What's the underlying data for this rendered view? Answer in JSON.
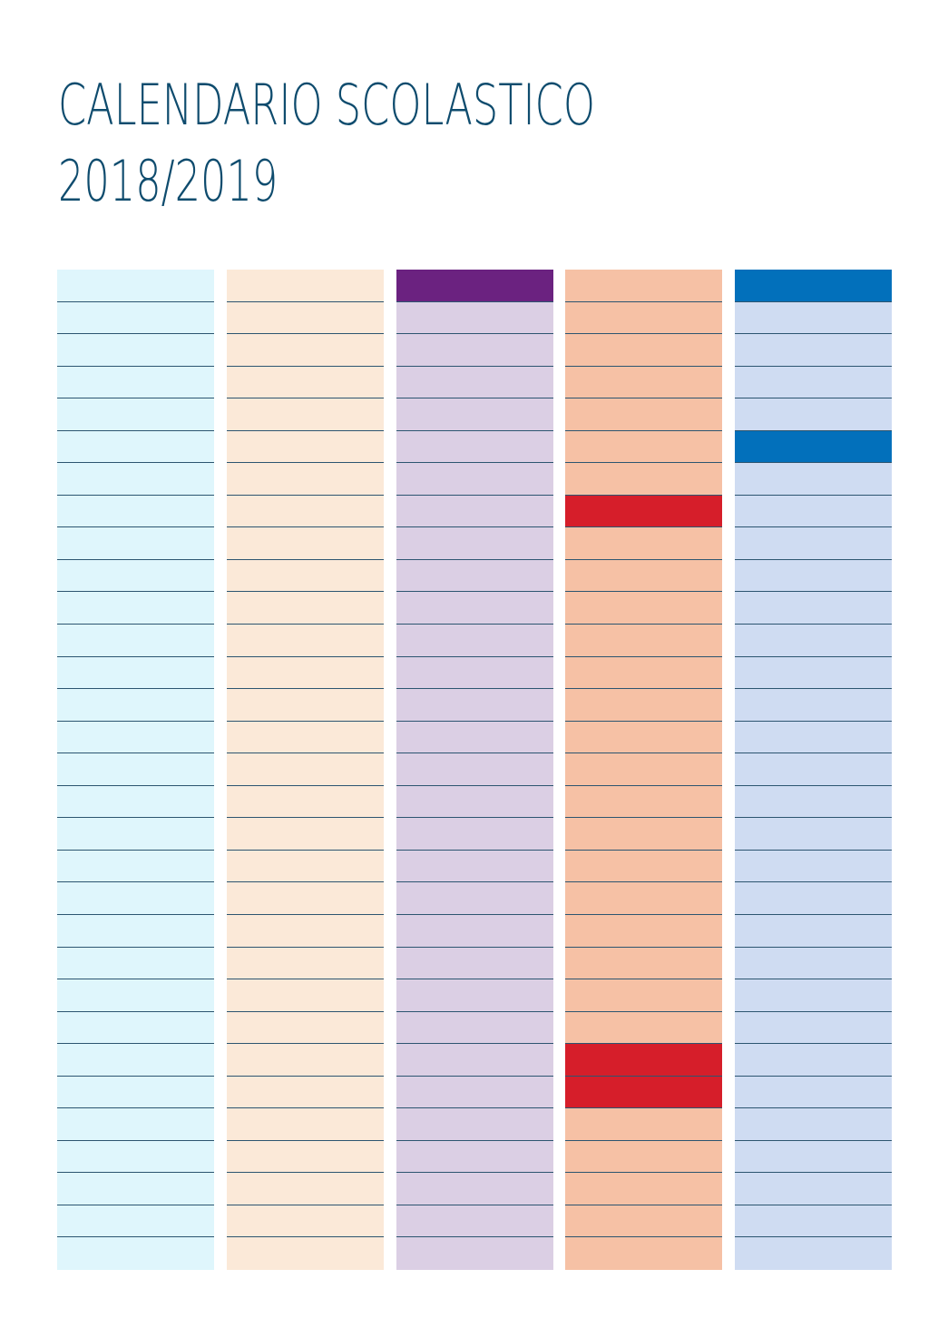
{
  "title": {
    "line1": "CALENDARIO SCOLASTICO",
    "line2": "2018/2019"
  },
  "calendar": {
    "rows_per_column": 31,
    "columns": [
      {
        "id": "col-1",
        "base_color": "#dff6fc",
        "highlighted_rows": [],
        "highlight_color": null
      },
      {
        "id": "col-2",
        "base_color": "#fbe9d8",
        "highlighted_rows": [],
        "highlight_color": null
      },
      {
        "id": "col-3",
        "base_color": "#dbcfe4",
        "highlighted_rows": [
          1
        ],
        "highlight_color": "#6b2280"
      },
      {
        "id": "col-4",
        "base_color": "#f6c1a5",
        "highlighted_rows": [
          8,
          25,
          26
        ],
        "highlight_color": "#d61e2a"
      },
      {
        "id": "col-5",
        "base_color": "#cfdcf2",
        "highlighted_rows": [
          1,
          6
        ],
        "highlight_color": "#0270bb"
      }
    ]
  }
}
